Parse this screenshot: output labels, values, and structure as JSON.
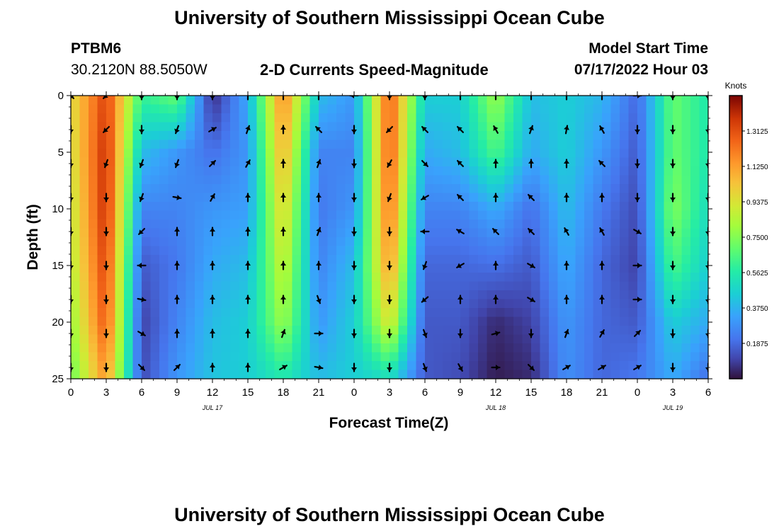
{
  "page": {
    "title": "University of Southern Mississippi Ocean Cube",
    "bottom_title": "University of Southern Mississippi Ocean Cube",
    "station_id": "PTBM6",
    "station_coords": "30.2120N  88.5050W",
    "chart_heading": "2-D Currents Speed-Magnitude",
    "model_start_label": "Model Start Time",
    "model_start_value": "07/17/2022 Hour 03"
  },
  "chart_data": {
    "type": "heatmap",
    "title": "2-D Currents Speed-Magnitude",
    "xlabel": "Forecast Time(Z)",
    "ylabel": "Depth (ft)",
    "x_ticks": [
      0,
      3,
      6,
      9,
      12,
      15,
      18,
      21,
      24,
      27,
      30,
      33,
      36,
      39,
      42,
      45,
      48,
      51,
      54
    ],
    "x_tick_labels": [
      "0",
      "3",
      "6",
      "9",
      "12",
      "15",
      "18",
      "21",
      "0",
      "3",
      "6",
      "9",
      "12",
      "15",
      "18",
      "21",
      "0",
      "3",
      "6"
    ],
    "x_range": [
      0,
      54
    ],
    "date_labels": [
      {
        "x": 12,
        "label": "JUL 17"
      },
      {
        "x": 36,
        "label": "JUL 18"
      },
      {
        "x": 51,
        "label": "JUL 19"
      }
    ],
    "y_ticks": [
      0,
      5,
      10,
      15,
      20,
      25
    ],
    "y_range": [
      0,
      25
    ],
    "y_inverted": true,
    "colorbar": {
      "title": "Knots",
      "range": [
        0,
        1.5
      ],
      "ticks": [
        0.1875,
        0.375,
        0.5625,
        0.75,
        0.9375,
        1.125,
        1.3125
      ],
      "tick_labels": [
        "0.1875",
        "0.3750",
        "0.5625",
        "0.7500",
        "0.9375",
        "1.1250",
        "1.3125"
      ]
    },
    "grid": false,
    "speed_columns_knots": {
      "x_hours": [
        0,
        3,
        6,
        9,
        12,
        15,
        18,
        21,
        24,
        27,
        30,
        33,
        36,
        39,
        42,
        45,
        48,
        51,
        54
      ],
      "depths_ft": [
        0,
        5,
        10,
        15,
        20,
        25
      ],
      "values": [
        [
          0.95,
          0.92,
          0.88,
          0.85,
          0.78,
          0.7
        ],
        [
          1.35,
          1.4,
          1.4,
          1.35,
          1.3,
          1.15
        ],
        [
          0.6,
          0.4,
          0.25,
          0.15,
          0.1,
          0.12
        ],
        [
          0.7,
          0.3,
          0.25,
          0.22,
          0.25,
          0.3
        ],
        [
          0.05,
          0.2,
          0.3,
          0.35,
          0.4,
          0.42
        ],
        [
          0.35,
          0.3,
          0.32,
          0.4,
          0.45,
          0.45
        ],
        [
          1.2,
          1.1,
          1.0,
          0.9,
          0.8,
          0.55
        ],
        [
          0.4,
          0.25,
          0.22,
          0.25,
          0.3,
          0.4
        ],
        [
          0.3,
          0.25,
          0.3,
          0.4,
          0.45,
          0.45
        ],
        [
          1.3,
          1.3,
          1.25,
          1.15,
          0.95,
          0.5
        ],
        [
          0.45,
          0.35,
          0.25,
          0.18,
          0.15,
          0.15
        ],
        [
          0.45,
          0.4,
          0.25,
          0.18,
          0.15,
          0.12
        ],
        [
          0.8,
          0.65,
          0.35,
          0.2,
          0.05,
          0.02
        ],
        [
          0.4,
          0.35,
          0.2,
          0.15,
          0.1,
          0.05
        ],
        [
          0.45,
          0.45,
          0.4,
          0.35,
          0.3,
          0.28
        ],
        [
          0.38,
          0.3,
          0.22,
          0.18,
          0.18,
          0.18
        ],
        [
          0.18,
          0.15,
          0.12,
          0.1,
          0.15,
          0.22
        ],
        [
          0.7,
          0.7,
          0.75,
          0.65,
          0.45,
          0.35
        ],
        [
          0.55,
          0.55,
          0.5,
          0.45,
          0.35,
          0.2
        ]
      ]
    },
    "direction_arrows": {
      "x_hours": [
        0,
        3,
        6,
        9,
        12,
        15,
        18,
        21,
        24,
        27,
        30,
        33,
        36,
        39,
        42,
        45,
        48,
        51,
        54
      ],
      "depths_ft": [
        0,
        3,
        6,
        9,
        12,
        15,
        18,
        21,
        24
      ],
      "headings_deg": [
        [
          135,
          225,
          180,
          180,
          180,
          0,
          0,
          0,
          270,
          180,
          180,
          0,
          0,
          0,
          0,
          0,
          90,
          180,
          180
        ],
        [
          180,
          225,
          180,
          200,
          60,
          20,
          0,
          315,
          180,
          225,
          315,
          315,
          330,
          20,
          10,
          330,
          180,
          180,
          180
        ],
        [
          180,
          200,
          200,
          200,
          45,
          30,
          0,
          20,
          180,
          210,
          135,
          315,
          0,
          0,
          0,
          315,
          180,
          180,
          180
        ],
        [
          180,
          180,
          200,
          100,
          30,
          0,
          0,
          0,
          180,
          200,
          240,
          315,
          0,
          315,
          0,
          0,
          180,
          180,
          180
        ],
        [
          180,
          180,
          225,
          0,
          0,
          0,
          0,
          20,
          180,
          180,
          270,
          300,
          315,
          315,
          330,
          330,
          120,
          180,
          180
        ],
        [
          180,
          180,
          270,
          0,
          0,
          0,
          0,
          0,
          180,
          180,
          200,
          240,
          0,
          120,
          0,
          0,
          90,
          180,
          180
        ],
        [
          180,
          180,
          100,
          0,
          0,
          0,
          0,
          160,
          180,
          180,
          230,
          0,
          0,
          120,
          0,
          0,
          90,
          180,
          180
        ],
        [
          180,
          180,
          120,
          0,
          0,
          0,
          20,
          90,
          180,
          180,
          160,
          180,
          75,
          180,
          20,
          30,
          45,
          180,
          180
        ],
        [
          180,
          180,
          135,
          45,
          0,
          0,
          60,
          100,
          180,
          180,
          160,
          150,
          90,
          135,
          60,
          60,
          60,
          180,
          180
        ]
      ]
    }
  }
}
